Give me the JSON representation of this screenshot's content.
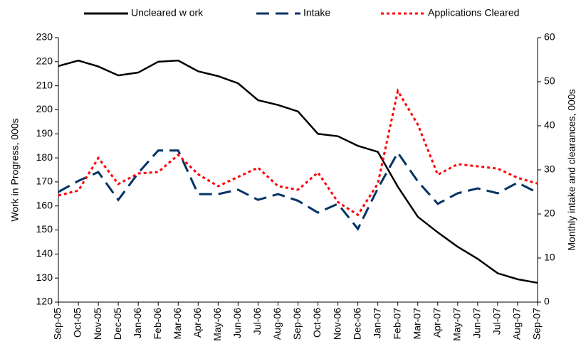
{
  "chart_data": {
    "type": "line",
    "ylabel": "Work in Progress, 000s",
    "y2label": "Monthly intake and clearances, 000s",
    "categories": [
      "Sep-05",
      "Oct-05",
      "Nov-05",
      "Dec-05",
      "Jan-06",
      "Feb-06",
      "Mar-06",
      "Apr-06",
      "May-06",
      "Jun-06",
      "Jul-06",
      "Aug-06",
      "Sep-06",
      "Oct-06",
      "Nov-06",
      "Dec-06",
      "Jan-07",
      "Feb-07",
      "Mar-07",
      "Apr-07",
      "May-07",
      "Jun-07",
      "Jul-07",
      "Aug-07",
      "Sep-07"
    ],
    "ylim": [
      120,
      230
    ],
    "yticks": [
      120,
      130,
      140,
      150,
      160,
      170,
      180,
      190,
      200,
      210,
      220,
      230
    ],
    "y2lim": [
      0,
      60
    ],
    "y2ticks": [
      0,
      10,
      20,
      30,
      40,
      50,
      60
    ],
    "legend": "top",
    "series": [
      {
        "name": "Uncleared w ork",
        "color": "#000000",
        "dash": "solid",
        "axis": "y",
        "values": [
          218.2,
          220.5,
          218,
          214.3,
          215.5,
          220,
          220.5,
          216,
          214,
          211,
          204,
          202,
          199.3,
          190,
          189,
          185,
          182.5,
          168,
          155.5,
          149,
          143,
          138,
          132,
          129.5,
          128
        ]
      },
      {
        "name": "Intake",
        "color": "#003366",
        "dash": "dashed",
        "axis": "y2",
        "values": [
          25,
          27.5,
          29.5,
          23.2,
          29.3,
          34.4,
          34.4,
          24.5,
          24.5,
          25.5,
          23.2,
          24.5,
          23,
          20.3,
          22.3,
          16.6,
          25.8,
          33.9,
          27.4,
          22.3,
          24.7,
          25.8,
          24.7,
          27.1,
          24.8
        ]
      },
      {
        "name": "Applications Cleared",
        "color": "#ff0000",
        "dash": "dotted",
        "axis": "y2",
        "values": [
          24.2,
          25.3,
          32.7,
          26.8,
          29.2,
          29.5,
          33.4,
          29,
          26.3,
          28.4,
          30.5,
          26.3,
          25.5,
          29.4,
          22.7,
          19.8,
          26.9,
          47.9,
          40.3,
          28.9,
          31.3,
          30.8,
          30.3,
          28.2,
          26.9
        ]
      }
    ]
  }
}
